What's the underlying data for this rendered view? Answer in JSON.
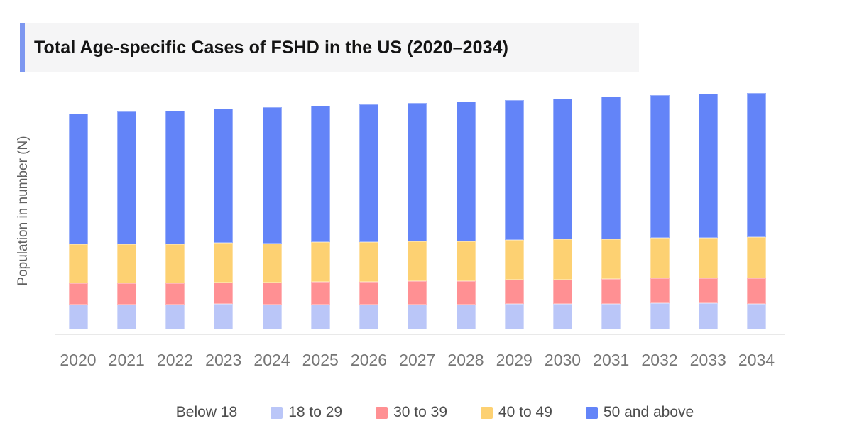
{
  "header": {
    "title": "Total Age-specific Cases of FSHD in the US (2020–2034)"
  },
  "chart": {
    "ylabel": "Population in number (N)"
  },
  "colors": {
    "accent_bar": "#7d97f0",
    "header_bg": "#f5f5f6",
    "axis_line": "#e9e9e9",
    "x_label_text": "#767676",
    "legend_text": "#4d4d4d",
    "title_text": "#141414"
  },
  "legend": {
    "items": [
      {
        "label": "Below 18",
        "color": "#ffffff"
      },
      {
        "label": "18 to 29",
        "color": "#bac6f8"
      },
      {
        "label": "30 to 39",
        "color": "#ff9093"
      },
      {
        "label": "40 to 49",
        "color": "#fdd172"
      },
      {
        "label": "50 and above",
        "color": "#6384f8"
      }
    ]
  },
  "chart_data": {
    "type": "bar",
    "stacked": true,
    "title": "Total Age-specific Cases of FSHD in the US (2020–2034)",
    "xlabel": "",
    "ylabel": "Population in number (N)",
    "legend_position": "bottom",
    "grid": false,
    "y_axis_numeric_labels_shown": false,
    "value_scale": "relative segment heights in pixels (chart displays no numeric y-axis ticks)",
    "categories": [
      "2020",
      "2021",
      "2022",
      "2023",
      "2024",
      "2025",
      "2026",
      "2027",
      "2028",
      "2029",
      "2030",
      "2031",
      "2032",
      "2033",
      "2034"
    ],
    "series": [
      {
        "name": "Below 18",
        "color": "#ffffff",
        "values": [
          6,
          6,
          6,
          6,
          6,
          6,
          6,
          6,
          6,
          6,
          6,
          6,
          6,
          6,
          6
        ]
      },
      {
        "name": "18 to 29",
        "color": "#bac6f8",
        "values": [
          35,
          35,
          35,
          36,
          35,
          35,
          35,
          35,
          35,
          36,
          36,
          36,
          37,
          37,
          36
        ]
      },
      {
        "name": "30 to 39",
        "color": "#ff9093",
        "values": [
          30,
          30,
          30,
          30,
          31,
          32,
          32,
          33,
          33,
          34,
          34,
          35,
          35,
          35,
          36
        ]
      },
      {
        "name": "40 to 49",
        "color": "#fdd172",
        "values": [
          55,
          55,
          55,
          56,
          55,
          56,
          56,
          56,
          56,
          56,
          57,
          56,
          57,
          57,
          58
        ]
      },
      {
        "name": "50 and above",
        "color": "#6384f8",
        "values": [
          184,
          187,
          188,
          189,
          192,
          192,
          194,
          195,
          197,
          197,
          198,
          201,
          201,
          203,
          203
        ]
      }
    ]
  }
}
